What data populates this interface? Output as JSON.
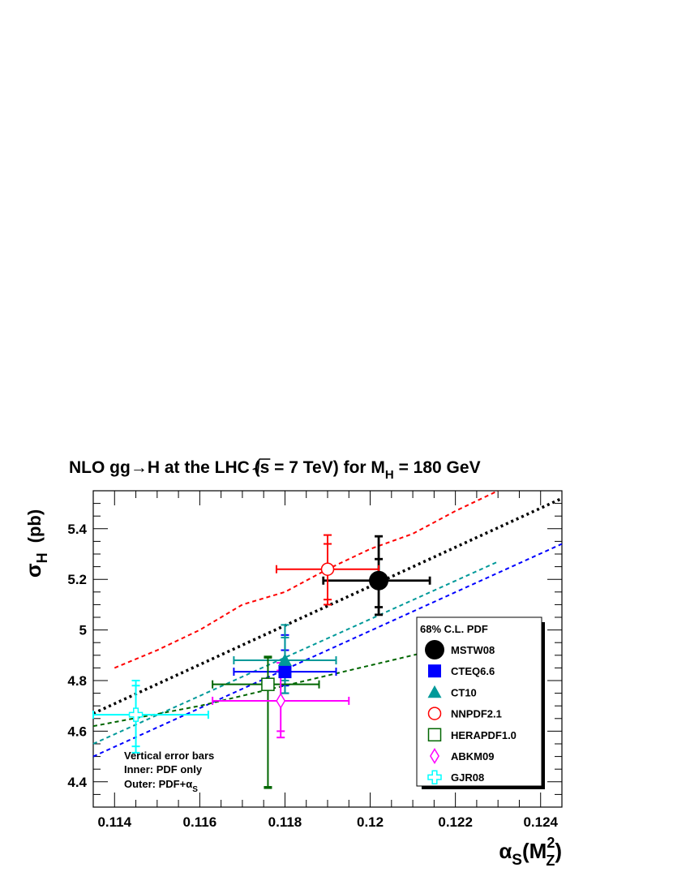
{
  "chart_data": {
    "type": "scatter",
    "title": {
      "main": "NLO gg→H at the LHC (",
      "sqrt_s": "s",
      "energy": " = 7 TeV) for M",
      "sub": "H",
      "mass": " = 180 GeV"
    },
    "xlabel": {
      "base": "α",
      "sub": "S",
      "paren_open": "(M",
      "sup": "2",
      "sub2": "Z",
      "paren_close": ")"
    },
    "ylabel": {
      "base": "σ",
      "sub": "H",
      "unit": "(pb)"
    },
    "xlim": [
      0.1135,
      0.1245
    ],
    "ylim": [
      4.3,
      5.55
    ],
    "x_ticks": [
      {
        "value": 0.114,
        "label": "0.114"
      },
      {
        "value": 0.116,
        "label": "0.116"
      },
      {
        "value": 0.118,
        "label": "0.118"
      },
      {
        "value": 0.12,
        "label": "0.12"
      },
      {
        "value": 0.122,
        "label": "0.122"
      },
      {
        "value": 0.124,
        "label": "0.124"
      }
    ],
    "y_ticks": [
      {
        "value": 4.4,
        "label": "4.4"
      },
      {
        "value": 4.6,
        "label": "4.6"
      },
      {
        "value": 4.8,
        "label": "4.8"
      },
      {
        "value": 5.0,
        "label": "5"
      },
      {
        "value": 5.2,
        "label": "5.2"
      },
      {
        "value": 5.4,
        "label": "5.4"
      }
    ],
    "legend": {
      "title": "68% C.L. PDF",
      "placement": "bottom-right"
    },
    "note": {
      "line1": "Vertical error bars",
      "line2": "Inner: PDF only",
      "line3_prefix": "Outer: PDF+α",
      "line3_sub": "S"
    },
    "series": [
      {
        "name": "MSTW08",
        "color": "#000000",
        "marker": "filled-circle",
        "point": {
          "x": 0.1202,
          "y": 5.195
        },
        "x_err": [
          0.1189,
          0.1214
        ],
        "y_err_inner": [
          5.09,
          5.28
        ],
        "y_err_outer": [
          5.06,
          5.37
        ],
        "curve": [
          [
            0.1135,
            4.67
          ],
          [
            0.1245,
            5.52
          ]
        ]
      },
      {
        "name": "CTEQ6.6",
        "color": "#0000ff",
        "marker": "filled-square",
        "point": {
          "x": 0.118,
          "y": 4.835
        },
        "x_err": [
          0.1168,
          0.1192
        ],
        "y_err_inner": [
          4.78,
          4.92
        ],
        "y_err_outer": [
          4.75,
          4.98
        ],
        "curve": [
          [
            0.1135,
            4.5
          ],
          [
            0.1245,
            5.34
          ]
        ]
      },
      {
        "name": "CT10",
        "color": "#009999",
        "marker": "filled-triangle",
        "point": {
          "x": 0.118,
          "y": 4.88
        },
        "x_err": [
          0.1168,
          0.1192
        ],
        "y_err_inner": [
          4.8,
          4.97
        ],
        "y_err_outer": [
          4.75,
          5.02
        ],
        "curve": [
          [
            0.1135,
            4.55
          ],
          [
            0.123,
            5.27
          ]
        ]
      },
      {
        "name": "NNPDF2.1",
        "color": "#ff0000",
        "marker": "open-circle",
        "point": {
          "x": 0.119,
          "y": 5.24
        },
        "x_err": [
          0.1178,
          0.1202
        ],
        "y_err_inner": [
          5.12,
          5.34
        ],
        "y_err_outer": [
          5.1,
          5.375
        ],
        "curve": [
          [
            0.114,
            4.85
          ],
          [
            0.115,
            4.92
          ],
          [
            0.116,
            5.0
          ],
          [
            0.117,
            5.1
          ],
          [
            0.118,
            5.15
          ],
          [
            0.119,
            5.24
          ],
          [
            0.12,
            5.32
          ],
          [
            0.121,
            5.38
          ],
          [
            0.122,
            5.47
          ],
          [
            0.123,
            5.55
          ]
        ]
      },
      {
        "name": "HERAPDF1.0",
        "color": "#006600",
        "marker": "open-square",
        "point": {
          "x": 0.1176,
          "y": 4.785
        },
        "x_err": [
          0.1163,
          0.1188
        ],
        "y_err_inner": [
          4.38,
          4.89
        ],
        "y_err_outer": [
          4.375,
          4.895
        ],
        "curve": [
          [
            0.1135,
            4.62
          ],
          [
            0.116,
            4.7
          ],
          [
            0.118,
            4.78
          ],
          [
            0.12,
            4.86
          ],
          [
            0.1225,
            4.96
          ]
        ]
      },
      {
        "name": "ABKM09",
        "color": "#ff00ff",
        "marker": "open-diamond",
        "point": {
          "x": 0.1179,
          "y": 4.72
        },
        "x_err": [
          0.1163,
          0.1195
        ],
        "y_err_inner": [
          4.6,
          4.84
        ],
        "y_err_outer": [
          4.575,
          4.87
        ],
        "curve": []
      },
      {
        "name": "GJR08",
        "color": "#00ffff",
        "marker": "open-cross",
        "point": {
          "x": 0.1145,
          "y": 4.665
        },
        "x_err": [
          0.1135,
          0.1162
        ],
        "y_err_inner": [
          4.54,
          4.78
        ],
        "y_err_outer": [
          4.515,
          4.8
        ],
        "curve": []
      }
    ]
  }
}
